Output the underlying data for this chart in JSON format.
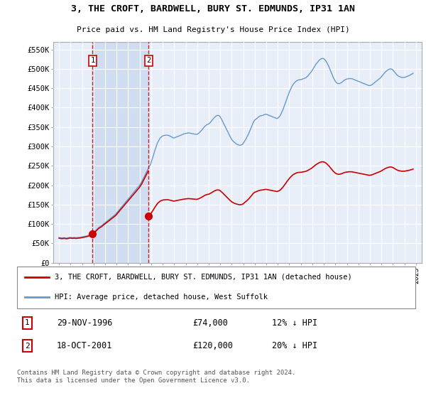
{
  "title": "3, THE CROFT, BARDWELL, BURY ST. EDMUNDS, IP31 1AN",
  "subtitle": "Price paid vs. HM Land Registry's House Price Index (HPI)",
  "legend_line1": "3, THE CROFT, BARDWELL, BURY ST. EDMUNDS, IP31 1AN (detached house)",
  "legend_line2": "HPI: Average price, detached house, West Suffolk",
  "sale1_date": "29-NOV-1996",
  "sale1_price": "£74,000",
  "sale1_hpi": "12% ↓ HPI",
  "sale1_year": 1996.92,
  "sale1_value": 74000,
  "sale2_date": "18-OCT-2001",
  "sale2_price": "£120,000",
  "sale2_hpi": "20% ↓ HPI",
  "sale2_year": 2001.79,
  "sale2_value": 120000,
  "footer": "Contains HM Land Registry data © Crown copyright and database right 2024.\nThis data is licensed under the Open Government Licence v3.0.",
  "hpi_color": "#6699cc",
  "price_color": "#cc0000",
  "marker_color": "#cc0000",
  "sale_vline_color": "#cc0000",
  "background_color": "#ffffff",
  "plot_bg_color": "#e8eef8",
  "shade_color": "#d0ddf0",
  "grid_color": "#ffffff",
  "ylim": [
    0,
    570000
  ],
  "xlim_start": 1993.5,
  "xlim_end": 2025.5,
  "yticks": [
    0,
    50000,
    100000,
    150000,
    200000,
    250000,
    300000,
    350000,
    400000,
    450000,
    500000,
    550000
  ],
  "ytick_labels": [
    "£0",
    "£50K",
    "£100K",
    "£150K",
    "£200K",
    "£250K",
    "£300K",
    "£350K",
    "£400K",
    "£450K",
    "£500K",
    "£550K"
  ],
  "xticks": [
    1994,
    1995,
    1996,
    1997,
    1998,
    1999,
    2000,
    2001,
    2002,
    2003,
    2004,
    2005,
    2006,
    2007,
    2008,
    2009,
    2010,
    2011,
    2012,
    2013,
    2014,
    2015,
    2016,
    2017,
    2018,
    2019,
    2020,
    2021,
    2022,
    2023,
    2024,
    2025
  ],
  "hpi_years": [
    1994.0,
    1994.08,
    1994.17,
    1994.25,
    1994.33,
    1994.42,
    1994.5,
    1994.58,
    1994.67,
    1994.75,
    1994.83,
    1994.92,
    1995.0,
    1995.08,
    1995.17,
    1995.25,
    1995.33,
    1995.42,
    1995.5,
    1995.58,
    1995.67,
    1995.75,
    1995.83,
    1995.92,
    1996.0,
    1996.08,
    1996.17,
    1996.25,
    1996.33,
    1996.42,
    1996.5,
    1996.58,
    1996.67,
    1996.75,
    1996.83,
    1996.92,
    1997.0,
    1997.08,
    1997.17,
    1997.25,
    1997.33,
    1997.42,
    1997.5,
    1997.58,
    1997.67,
    1997.75,
    1997.83,
    1997.92,
    1998.0,
    1998.08,
    1998.17,
    1998.25,
    1998.33,
    1998.42,
    1998.5,
    1998.58,
    1998.67,
    1998.75,
    1998.83,
    1998.92,
    1999.0,
    1999.08,
    1999.17,
    1999.25,
    1999.33,
    1999.42,
    1999.5,
    1999.58,
    1999.67,
    1999.75,
    1999.83,
    1999.92,
    2000.0,
    2000.08,
    2000.17,
    2000.25,
    2000.33,
    2000.42,
    2000.5,
    2000.58,
    2000.67,
    2000.75,
    2000.83,
    2000.92,
    2001.0,
    2001.08,
    2001.17,
    2001.25,
    2001.33,
    2001.42,
    2001.5,
    2001.58,
    2001.67,
    2001.75,
    2001.83,
    2001.92,
    2002.0,
    2002.08,
    2002.17,
    2002.25,
    2002.33,
    2002.42,
    2002.5,
    2002.58,
    2002.67,
    2002.75,
    2002.83,
    2002.92,
    2003.0,
    2003.08,
    2003.17,
    2003.25,
    2003.33,
    2003.42,
    2003.5,
    2003.58,
    2003.67,
    2003.75,
    2003.83,
    2003.92,
    2004.0,
    2004.08,
    2004.17,
    2004.25,
    2004.33,
    2004.42,
    2004.5,
    2004.58,
    2004.67,
    2004.75,
    2004.83,
    2004.92,
    2005.0,
    2005.08,
    2005.17,
    2005.25,
    2005.33,
    2005.42,
    2005.5,
    2005.58,
    2005.67,
    2005.75,
    2005.83,
    2005.92,
    2006.0,
    2006.08,
    2006.17,
    2006.25,
    2006.33,
    2006.42,
    2006.5,
    2006.58,
    2006.67,
    2006.75,
    2006.83,
    2006.92,
    2007.0,
    2007.08,
    2007.17,
    2007.25,
    2007.33,
    2007.42,
    2007.5,
    2007.58,
    2007.67,
    2007.75,
    2007.83,
    2007.92,
    2008.0,
    2008.08,
    2008.17,
    2008.25,
    2008.33,
    2008.42,
    2008.5,
    2008.58,
    2008.67,
    2008.75,
    2008.83,
    2008.92,
    2009.0,
    2009.08,
    2009.17,
    2009.25,
    2009.33,
    2009.42,
    2009.5,
    2009.58,
    2009.67,
    2009.75,
    2009.83,
    2009.92,
    2010.0,
    2010.08,
    2010.17,
    2010.25,
    2010.33,
    2010.42,
    2010.5,
    2010.58,
    2010.67,
    2010.75,
    2010.83,
    2010.92,
    2011.0,
    2011.08,
    2011.17,
    2011.25,
    2011.33,
    2011.42,
    2011.5,
    2011.58,
    2011.67,
    2011.75,
    2011.83,
    2011.92,
    2012.0,
    2012.08,
    2012.17,
    2012.25,
    2012.33,
    2012.42,
    2012.5,
    2012.58,
    2012.67,
    2012.75,
    2012.83,
    2012.92,
    2013.0,
    2013.08,
    2013.17,
    2013.25,
    2013.33,
    2013.42,
    2013.5,
    2013.58,
    2013.67,
    2013.75,
    2013.83,
    2013.92,
    2014.0,
    2014.08,
    2014.17,
    2014.25,
    2014.33,
    2014.42,
    2014.5,
    2014.58,
    2014.67,
    2014.75,
    2014.83,
    2014.92,
    2015.0,
    2015.08,
    2015.17,
    2015.25,
    2015.33,
    2015.42,
    2015.5,
    2015.58,
    2015.67,
    2015.75,
    2015.83,
    2015.92,
    2016.0,
    2016.08,
    2016.17,
    2016.25,
    2016.33,
    2016.42,
    2016.5,
    2016.58,
    2016.67,
    2016.75,
    2016.83,
    2016.92,
    2017.0,
    2017.08,
    2017.17,
    2017.25,
    2017.33,
    2017.42,
    2017.5,
    2017.58,
    2017.67,
    2017.75,
    2017.83,
    2017.92,
    2018.0,
    2018.08,
    2018.17,
    2018.25,
    2018.33,
    2018.42,
    2018.5,
    2018.58,
    2018.67,
    2018.75,
    2018.83,
    2018.92,
    2019.0,
    2019.08,
    2019.17,
    2019.25,
    2019.33,
    2019.42,
    2019.5,
    2019.58,
    2019.67,
    2019.75,
    2019.83,
    2019.92,
    2020.0,
    2020.08,
    2020.17,
    2020.25,
    2020.33,
    2020.42,
    2020.5,
    2020.58,
    2020.67,
    2020.75,
    2020.83,
    2020.92,
    2021.0,
    2021.08,
    2021.17,
    2021.25,
    2021.33,
    2021.42,
    2021.5,
    2021.58,
    2021.67,
    2021.75,
    2021.83,
    2021.92,
    2022.0,
    2022.08,
    2022.17,
    2022.25,
    2022.33,
    2022.42,
    2022.5,
    2022.58,
    2022.67,
    2022.75,
    2022.83,
    2022.92,
    2023.0,
    2023.08,
    2023.17,
    2023.25,
    2023.33,
    2023.42,
    2023.5,
    2023.58,
    2023.67,
    2023.75,
    2023.83,
    2023.92,
    2024.0,
    2024.08,
    2024.17,
    2024.25,
    2024.33,
    2024.42,
    2024.5,
    2024.58,
    2024.67,
    2024.75
  ],
  "hpi_values": [
    65000,
    64500,
    64000,
    63800,
    64000,
    64500,
    64200,
    63900,
    63500,
    64000,
    64500,
    65000,
    65200,
    64800,
    64500,
    64800,
    65000,
    64700,
    64400,
    64700,
    65000,
    65200,
    65500,
    66000,
    66500,
    67000,
    67500,
    68000,
    68500,
    69000,
    70000,
    71000,
    72000,
    73000,
    74500,
    76000,
    78000,
    80000,
    82500,
    85000,
    87500,
    90000,
    92000,
    93500,
    95000,
    97000,
    99000,
    101000,
    103000,
    105000,
    107000,
    109000,
    111000,
    113000,
    115000,
    117000,
    119000,
    121000,
    123000,
    125000,
    128000,
    131000,
    134000,
    137000,
    140000,
    143000,
    146000,
    149000,
    152000,
    155000,
    158000,
    161000,
    164000,
    167000,
    170000,
    173000,
    176000,
    179000,
    182000,
    185000,
    188000,
    191000,
    194000,
    197000,
    200000,
    204000,
    208000,
    213000,
    218000,
    223000,
    228000,
    233000,
    238000,
    243000,
    248000,
    252000,
    258000,
    266000,
    274000,
    282000,
    290000,
    298000,
    305000,
    311000,
    316000,
    320000,
    323000,
    325000,
    327000,
    328000,
    328500,
    329000,
    329000,
    329000,
    328500,
    327500,
    326500,
    325000,
    323500,
    322000,
    322000,
    323000,
    324000,
    325000,
    326000,
    327000,
    328000,
    329000,
    330000,
    331000,
    332000,
    333000,
    333500,
    334000,
    334500,
    335000,
    334500,
    334000,
    333500,
    333000,
    332500,
    332000,
    331500,
    331000,
    331500,
    333000,
    335000,
    337500,
    340000,
    343000,
    346000,
    349000,
    352000,
    354000,
    356000,
    357000,
    358000,
    360000,
    363000,
    366000,
    369000,
    372000,
    375000,
    377000,
    379000,
    380000,
    380000,
    379000,
    376000,
    372000,
    367000,
    362000,
    357000,
    352000,
    347000,
    342000,
    337000,
    332000,
    327000,
    322000,
    318000,
    315000,
    312000,
    310000,
    308000,
    306000,
    305000,
    304000,
    303000,
    303000,
    304000,
    305000,
    308000,
    312000,
    316000,
    320000,
    325000,
    330000,
    335000,
    341000,
    347000,
    353000,
    359000,
    365000,
    368000,
    370000,
    372000,
    374000,
    376000,
    378000,
    379000,
    379500,
    380000,
    381000,
    382000,
    383000,
    383000,
    382000,
    381000,
    380000,
    379000,
    378000,
    377000,
    376000,
    375000,
    374000,
    373000,
    372000,
    373000,
    375000,
    378000,
    382000,
    387000,
    393000,
    399000,
    406000,
    413000,
    420000,
    427000,
    434000,
    440000,
    446000,
    451000,
    456000,
    460000,
    463000,
    466000,
    468000,
    470000,
    471000,
    472000,
    472000,
    472500,
    473000,
    474000,
    475000,
    476000,
    477000,
    479000,
    481000,
    484000,
    487000,
    490000,
    493000,
    497000,
    501000,
    505000,
    509000,
    513000,
    516000,
    519000,
    522000,
    524000,
    526000,
    527000,
    527000,
    526000,
    524000,
    521000,
    517000,
    512000,
    507000,
    501000,
    495000,
    489000,
    483000,
    477000,
    472000,
    468000,
    465000,
    463000,
    462000,
    462000,
    463000,
    464000,
    466000,
    468000,
    470000,
    472000,
    473000,
    474000,
    474500,
    475000,
    475000,
    475000,
    475000,
    474000,
    473000,
    472000,
    471000,
    470000,
    469000,
    468000,
    467000,
    466000,
    465000,
    464000,
    463000,
    462000,
    461000,
    460000,
    459000,
    458000,
    457000,
    457000,
    458000,
    459000,
    461000,
    463000,
    465000,
    467000,
    469000,
    471000,
    473000,
    475000,
    477000,
    480000,
    483000,
    486000,
    489000,
    492000,
    494000,
    496000,
    498000,
    499000,
    500000,
    500000,
    499000,
    497000,
    494000,
    491000,
    488000,
    485000,
    483000,
    481000,
    480000,
    479000,
    478000,
    478000,
    478000,
    478000,
    479000,
    480000,
    481000,
    482000,
    483000,
    484000,
    486000,
    487000,
    489000,
    491000,
    492000,
    494000,
    495000,
    496000,
    497000,
    497000,
    497000,
    497000,
    497000,
    497000,
    497000
  ]
}
